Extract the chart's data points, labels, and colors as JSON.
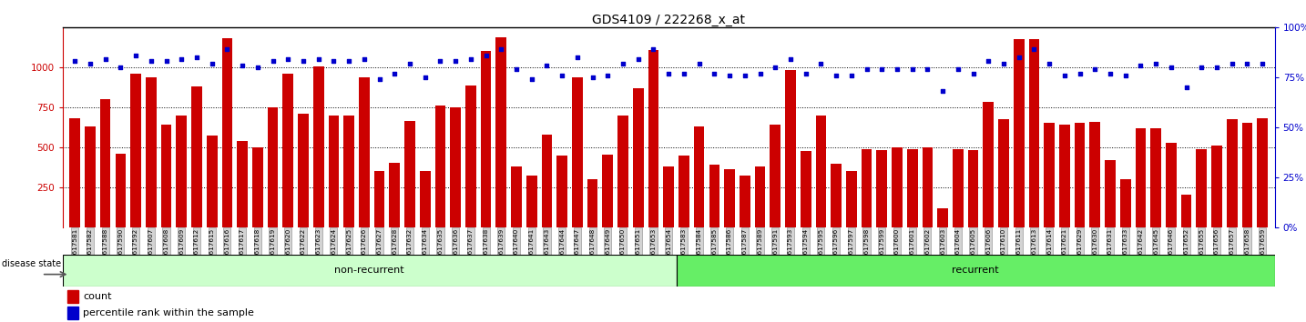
{
  "title": "GDS4109 / 222268_x_at",
  "samples": [
    "GSM617581",
    "GSM617582",
    "GSM617588",
    "GSM617590",
    "GSM617592",
    "GSM617607",
    "GSM617608",
    "GSM617609",
    "GSM617612",
    "GSM617615",
    "GSM617616",
    "GSM617617",
    "GSM617618",
    "GSM617619",
    "GSM617620",
    "GSM617622",
    "GSM617623",
    "GSM617624",
    "GSM617625",
    "GSM617626",
    "GSM617627",
    "GSM617628",
    "GSM617632",
    "GSM617634",
    "GSM617635",
    "GSM617636",
    "GSM617637",
    "GSM617638",
    "GSM617639",
    "GSM617640",
    "GSM617641",
    "GSM617643",
    "GSM617644",
    "GSM617647",
    "GSM617648",
    "GSM617649",
    "GSM617650",
    "GSM617651",
    "GSM617653",
    "GSM617654",
    "GSM617583",
    "GSM617584",
    "GSM617585",
    "GSM617586",
    "GSM617587",
    "GSM617589",
    "GSM617591",
    "GSM617593",
    "GSM617594",
    "GSM617595",
    "GSM617596",
    "GSM617597",
    "GSM617598",
    "GSM617599",
    "GSM617600",
    "GSM617601",
    "GSM617602",
    "GSM617603",
    "GSM617604",
    "GSM617605",
    "GSM617606",
    "GSM617610",
    "GSM617611",
    "GSM617613",
    "GSM617614",
    "GSM617621",
    "GSM617629",
    "GSM617630",
    "GSM617631",
    "GSM617633",
    "GSM617642",
    "GSM617645",
    "GSM617646",
    "GSM617652",
    "GSM617655",
    "GSM617656",
    "GSM617657",
    "GSM617658",
    "GSM617659"
  ],
  "bar_values": [
    680,
    630,
    800,
    460,
    960,
    935,
    640,
    700,
    880,
    570,
    1180,
    540,
    500,
    750,
    960,
    710,
    1005,
    700,
    700,
    940,
    350,
    400,
    665,
    350,
    760,
    750,
    885,
    1100,
    1190,
    380,
    320,
    580,
    450,
    940,
    300,
    455,
    700,
    870,
    1110,
    380,
    450,
    630,
    390,
    360,
    320,
    380,
    640,
    980,
    475,
    700,
    395,
    350,
    490,
    480,
    500,
    490,
    500,
    115,
    490,
    480,
    785,
    675,
    1175,
    1175,
    650,
    640,
    650,
    660,
    420,
    300,
    620,
    620,
    530,
    200,
    490,
    510,
    675,
    650,
    680
  ],
  "percentile_values": [
    83,
    82,
    84,
    80,
    86,
    83,
    83,
    84,
    85,
    82,
    89,
    81,
    80,
    83,
    84,
    83,
    84,
    83,
    83,
    84,
    74,
    77,
    82,
    75,
    83,
    83,
    84,
    86,
    89,
    79,
    74,
    81,
    76,
    85,
    75,
    76,
    82,
    84,
    89,
    77,
    77,
    82,
    77,
    76,
    76,
    77,
    80,
    84,
    77,
    82,
    76,
    76,
    79,
    79,
    79,
    79,
    79,
    68,
    79,
    77,
    83,
    82,
    85,
    89,
    82,
    76,
    77,
    79,
    77,
    76,
    81,
    82,
    80,
    70,
    80,
    80,
    82,
    82,
    82
  ],
  "non_recurrent_count": 40,
  "recurrent_count": 39,
  "ylim_left": [
    0,
    1250
  ],
  "ylim_right": [
    0,
    100
  ],
  "yticks_left": [
    250,
    500,
    750,
    1000
  ],
  "yticks_right": [
    0,
    25,
    50,
    75,
    100
  ],
  "bar_color": "#cc0000",
  "dot_color": "#0000cc",
  "non_recurrent_color": "#ccffcc",
  "recurrent_color": "#66ee66",
  "tick_label_bg": "#d3d3d3",
  "legend_count_color": "#cc0000",
  "legend_pct_color": "#0000cc"
}
